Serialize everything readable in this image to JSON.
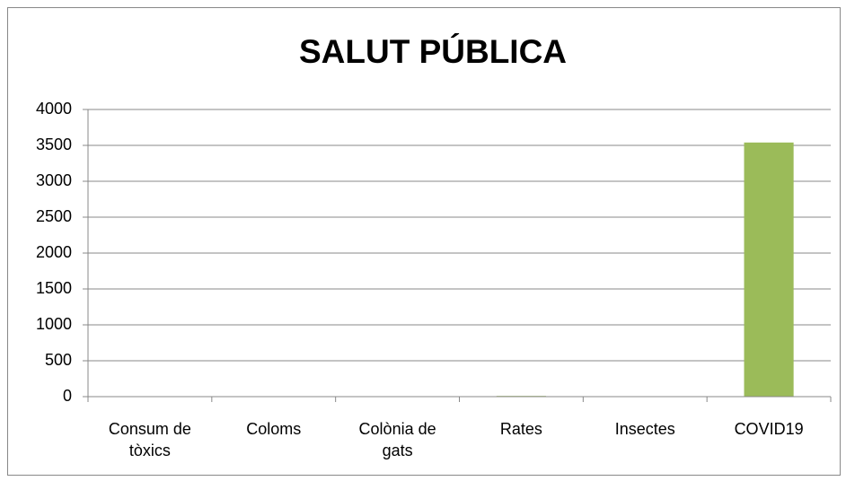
{
  "chart_data": {
    "type": "bar",
    "title": "SALUT PÚBLICA",
    "categories": [
      "Consum de tòxics",
      "Coloms",
      "Colònia de gats",
      "Rates",
      "Insectes",
      "COVID19"
    ],
    "values": [
      2,
      3,
      2,
      10,
      3,
      3540
    ],
    "color": "#9bbb59",
    "ylim": [
      0,
      4000
    ],
    "yticks": [
      0,
      500,
      1000,
      1500,
      2000,
      2500,
      3000,
      3500,
      4000
    ],
    "grid": true
  }
}
